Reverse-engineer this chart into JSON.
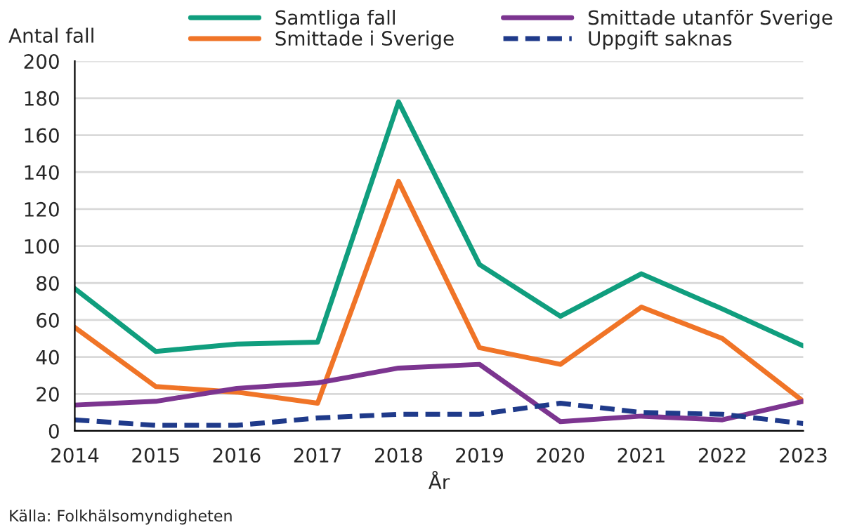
{
  "chart_data": {
    "type": "line",
    "xlabel": "År",
    "ylabel": "Antal fall",
    "x": [
      2014,
      2015,
      2016,
      2017,
      2018,
      2019,
      2020,
      2021,
      2022,
      2023
    ],
    "series": [
      {
        "name": "Samtliga fall",
        "color": "#109e7e",
        "values": [
          77,
          43,
          47,
          48,
          178,
          90,
          62,
          85,
          66,
          46
        ]
      },
      {
        "name": "Smittade i Sverige",
        "color": "#f07427",
        "values": [
          56,
          24,
          21,
          15,
          135,
          45,
          36,
          67,
          50,
          16
        ]
      },
      {
        "name": "Smittade utanför Sverige",
        "color": "#7c3590",
        "values": [
          14,
          16,
          23,
          26,
          34,
          36,
          5,
          8,
          6,
          16
        ]
      },
      {
        "name": "Uppgift saknas",
        "color": "#1f3a8a",
        "line_style": "dashed",
        "values": [
          6,
          3,
          3,
          7,
          9,
          9,
          15,
          10,
          9,
          4
        ]
      }
    ],
    "xlim": [
      2014,
      2023
    ],
    "xticks": [
      2014,
      2015,
      2016,
      2017,
      2018,
      2019,
      2020,
      2021,
      2022,
      2023
    ],
    "ylim": [
      0,
      200
    ],
    "yticks": [
      0,
      20,
      40,
      60,
      80,
      100,
      120,
      140,
      160,
      180,
      200
    ],
    "grid": "y",
    "legend": "top",
    "marker": "none",
    "annotations": [
      "Källa: Folkhälsomyndigheten"
    ]
  }
}
